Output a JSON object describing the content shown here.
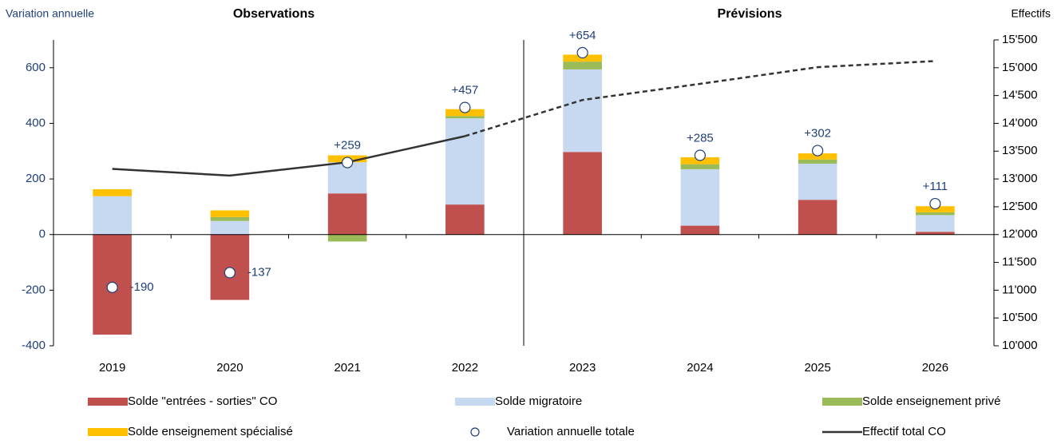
{
  "chart_data": {
    "type": "bar",
    "stacked": true,
    "y_label": "Variation annuelle",
    "y2_label": "Effectifs",
    "section_labels": [
      "Observations",
      "Prévisions"
    ],
    "divider_after_index": 3,
    "categories": [
      "2019",
      "2020",
      "2021",
      "2022",
      "2023",
      "2024",
      "2025",
      "2026"
    ],
    "ylim": [
      -400,
      700
    ],
    "yticks": [
      -400,
      -200,
      0,
      200,
      400,
      600
    ],
    "y2lim": [
      10000,
      15500
    ],
    "y2ticks": [
      {
        "value": 10000,
        "label": "10'000"
      },
      {
        "value": 10500,
        "label": "10'500"
      },
      {
        "value": 11000,
        "label": "11'000"
      },
      {
        "value": 11500,
        "label": "11'500"
      },
      {
        "value": 12000,
        "label": "12'000"
      },
      {
        "value": 12500,
        "label": "12'500"
      },
      {
        "value": 13000,
        "label": "13'000"
      },
      {
        "value": 13500,
        "label": "13'500"
      },
      {
        "value": 14000,
        "label": "14'000"
      },
      {
        "value": 14500,
        "label": "14'500"
      },
      {
        "value": 15000,
        "label": "15'000"
      },
      {
        "value": 15500,
        "label": "15'500"
      }
    ],
    "series": [
      {
        "name": "Solde \"entrées - sorties\" CO",
        "color": "#c0504d",
        "values": [
          -360,
          -235,
          148,
          108,
          297,
          32,
          125,
          10
        ]
      },
      {
        "name": "Solde migratoire",
        "color": "#c6d9f0",
        "values": [
          138,
          49,
          112,
          310,
          297,
          203,
          130,
          60
        ]
      },
      {
        "name": "Solde enseignement privé",
        "color": "#9bbb59",
        "values": [
          0,
          14,
          -25,
          8,
          28,
          18,
          15,
          10
        ]
      },
      {
        "name": "Solde enseignement spécialisé",
        "color": "#ffc000",
        "values": [
          25,
          24,
          25,
          25,
          25,
          25,
          22,
          22
        ]
      }
    ],
    "totals": {
      "name": "Variation annuelle totale",
      "color": "#ffffff",
      "values": [
        -190,
        -137,
        259,
        457,
        654,
        285,
        302,
        111
      ],
      "value_labels": [
        "-190",
        "-137",
        "+259",
        "+457",
        "+654",
        "+285",
        "+302",
        "+111"
      ]
    },
    "line": {
      "name": "Effectif total CO",
      "color": "#333333",
      "axis": "y2",
      "dashed_from_index": 3,
      "values": [
        13180,
        13060,
        13300,
        13770,
        14420,
        14710,
        15010,
        15120
      ]
    }
  }
}
